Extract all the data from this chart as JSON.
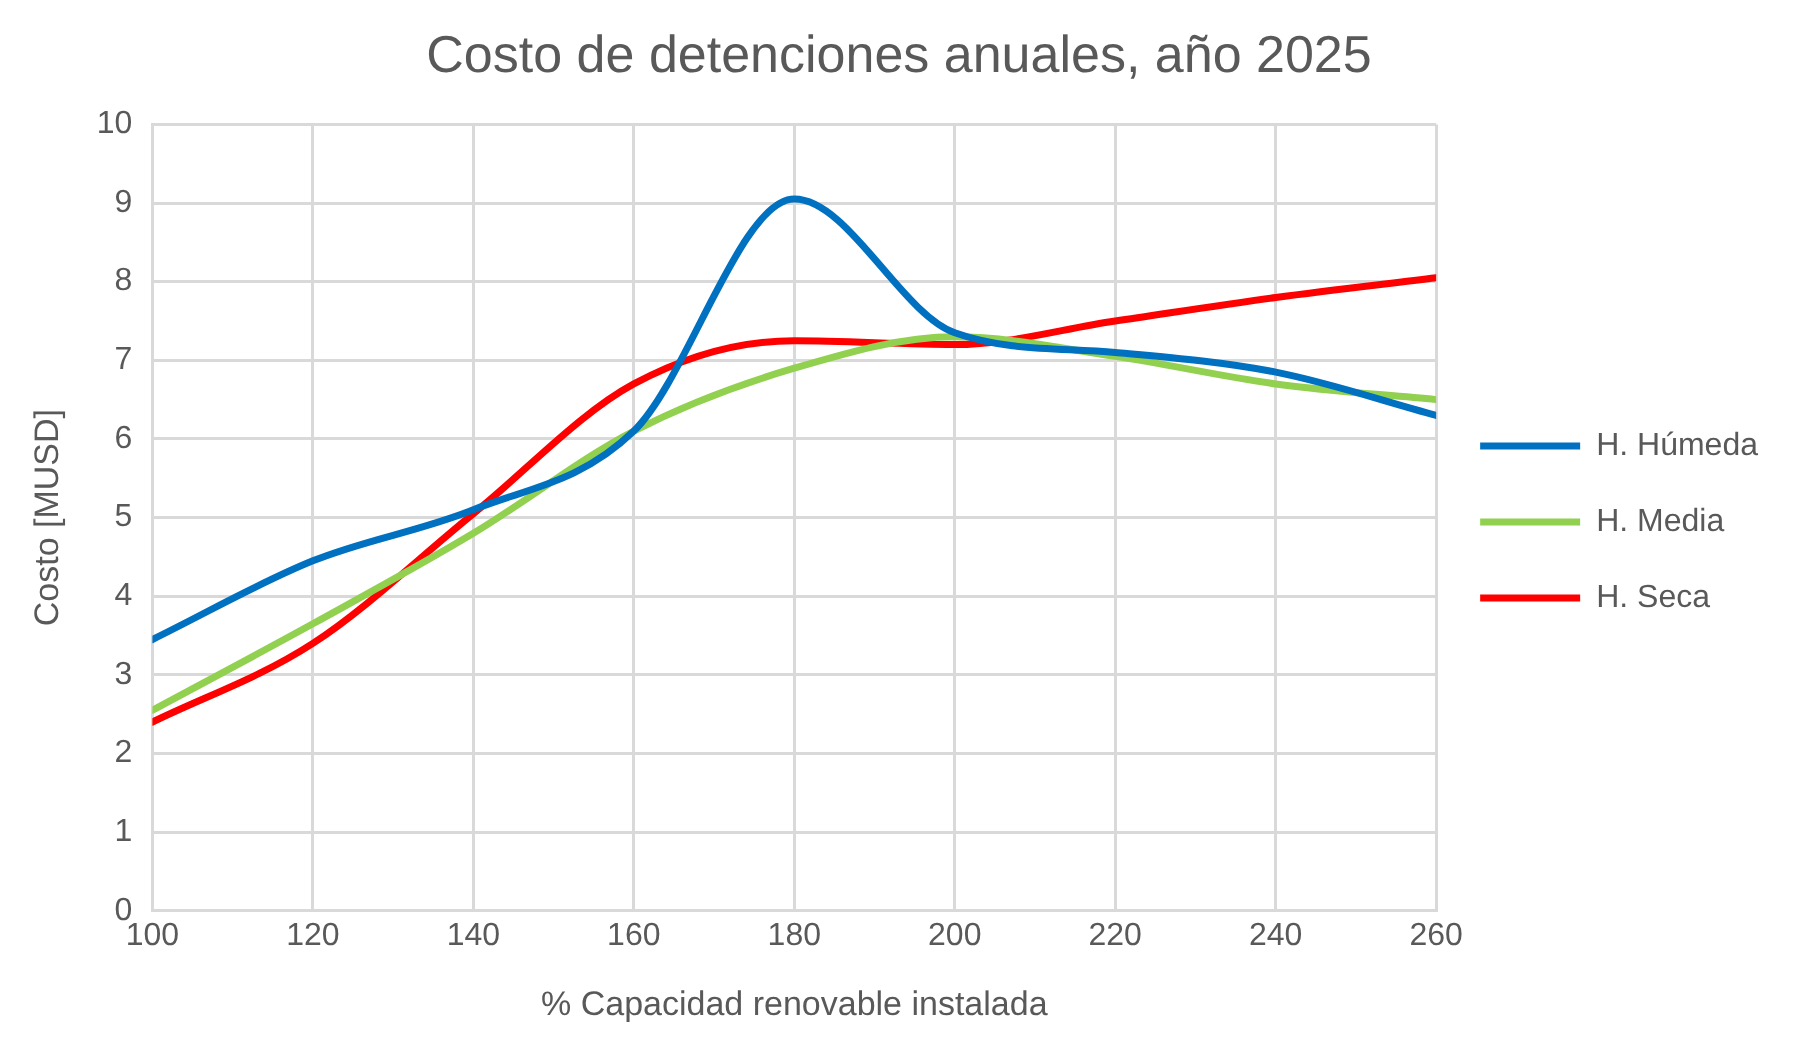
{
  "chart_data": {
    "type": "line",
    "title": "Costo de detenciones anuales, año 2025",
    "xlabel": "% Capacidad renovable instalada",
    "ylabel": "Costo [MUSD]",
    "x": [
      100,
      120,
      140,
      160,
      180,
      200,
      220,
      240,
      260
    ],
    "xlim": [
      100,
      260
    ],
    "xticks": [
      100,
      120,
      140,
      160,
      180,
      200,
      220,
      240,
      260
    ],
    "ylim": [
      0,
      10
    ],
    "yticks": [
      0,
      1,
      2,
      3,
      4,
      5,
      6,
      7,
      8,
      9,
      10
    ],
    "grid": true,
    "legend": "right",
    "marker": "none",
    "line_style": "solid",
    "series": [
      {
        "name": "H. Húmeda",
        "color": "#0070c0",
        "values": [
          3.45,
          4.45,
          5.1,
          6.1,
          9.05,
          7.35,
          7.1,
          6.85,
          6.3
        ]
      },
      {
        "name": "H. Media",
        "color": "#92d050",
        "values": [
          2.55,
          3.65,
          4.8,
          6.1,
          6.9,
          7.3,
          7.05,
          6.7,
          6.5
        ]
      },
      {
        "name": "H. Seca",
        "color": "#ff0000",
        "values": [
          2.4,
          3.4,
          5.05,
          6.7,
          7.25,
          7.2,
          7.5,
          7.8,
          8.05
        ]
      }
    ]
  }
}
